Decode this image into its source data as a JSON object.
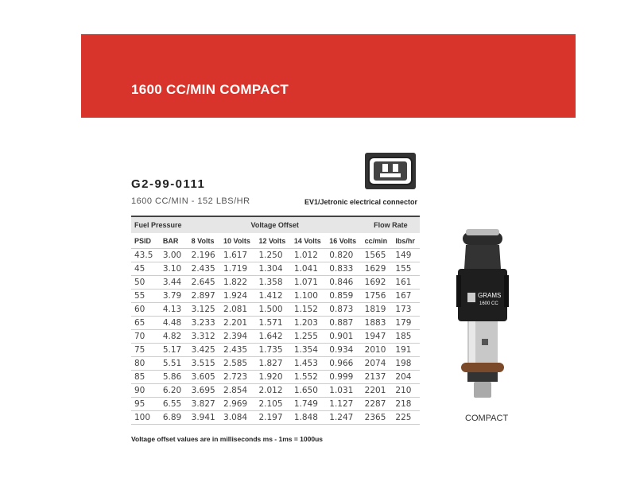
{
  "banner": {
    "title": "1600 CC/MIN COMPACT",
    "color": "#d9342b"
  },
  "product": {
    "part_number": "G2-99-0111",
    "subtitle": "1600 CC/MIN - 152 LBS/HR",
    "connector_label": "EV1/Jetronic electrical connector",
    "image_caption": "COMPACT",
    "injector_brand": "GRAMS",
    "injector_rating": "1600 CC"
  },
  "table": {
    "group_headers": [
      "Fuel Pressure",
      "Voltage Offset",
      "Flow Rate"
    ],
    "columns": [
      "PSID",
      "BAR",
      "8 Volts",
      "10 Volts",
      "12 Volts",
      "14 Volts",
      "16 Volts",
      "cc/min",
      "lbs/hr"
    ],
    "rows": [
      [
        "43.5",
        "3.00",
        "2.196",
        "1.617",
        "1.250",
        "1.012",
        "0.820",
        "1565",
        "149"
      ],
      [
        "45",
        "3.10",
        "2.435",
        "1.719",
        "1.304",
        "1.041",
        "0.833",
        "1629",
        "155"
      ],
      [
        "50",
        "3.44",
        "2.645",
        "1.822",
        "1.358",
        "1.071",
        "0.846",
        "1692",
        "161"
      ],
      [
        "55",
        "3.79",
        "2.897",
        "1.924",
        "1.412",
        "1.100",
        "0.859",
        "1756",
        "167"
      ],
      [
        "60",
        "4.13",
        "3.125",
        "2.081",
        "1.500",
        "1.152",
        "0.873",
        "1819",
        "173"
      ],
      [
        "65",
        "4.48",
        "3.233",
        "2.201",
        "1.571",
        "1.203",
        "0.887",
        "1883",
        "179"
      ],
      [
        "70",
        "4.82",
        "3.312",
        "2.394",
        "1.642",
        "1.255",
        "0.901",
        "1947",
        "185"
      ],
      [
        "75",
        "5.17",
        "3.425",
        "2.435",
        "1.735",
        "1.354",
        "0.934",
        "2010",
        "191"
      ],
      [
        "80",
        "5.51",
        "3.515",
        "2.585",
        "1.827",
        "1.453",
        "0.966",
        "2074",
        "198"
      ],
      [
        "85",
        "5.86",
        "3.605",
        "2.723",
        "1.920",
        "1.552",
        "0.999",
        "2137",
        "204"
      ],
      [
        "90",
        "6.20",
        "3.695",
        "2.854",
        "2.012",
        "1.650",
        "1.031",
        "2201",
        "210"
      ],
      [
        "95",
        "6.55",
        "3.827",
        "2.969",
        "2.105",
        "1.749",
        "1.127",
        "2287",
        "218"
      ],
      [
        "100",
        "6.89",
        "3.941",
        "3.084",
        "2.197",
        "1.848",
        "1.247",
        "2365",
        "225"
      ]
    ]
  },
  "footnote": "Voltage offset values are in milliseconds ms - 1ms = 1000us"
}
